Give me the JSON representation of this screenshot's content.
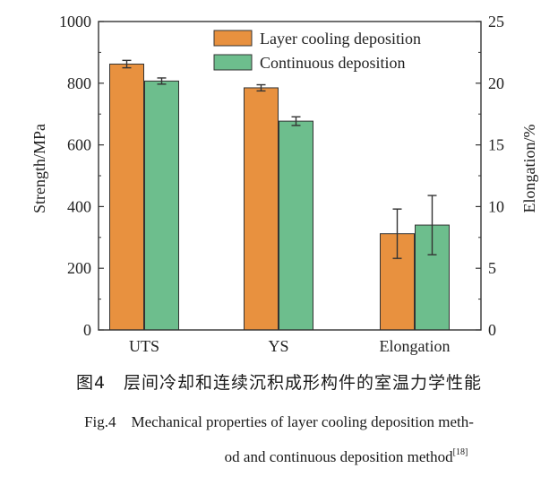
{
  "chart_data": {
    "type": "bar",
    "categories": [
      "UTS",
      "YS",
      "Elongation"
    ],
    "series": [
      {
        "name": "Layer cooling deposition",
        "color": "#E8913F",
        "values": [
          862,
          785,
          7.8
        ],
        "errors": [
          12,
          10,
          2.0
        ]
      },
      {
        "name": "Continuous deposition",
        "color": "#6DBE8D",
        "values": [
          807,
          677,
          8.5
        ],
        "errors": [
          10,
          14,
          2.4
        ]
      }
    ],
    "ylabel": "Strength/MPa",
    "y2label": "Elongation/%",
    "ylim": [
      0,
      1000
    ],
    "y2lim": [
      0,
      25
    ],
    "yticks": [
      "0",
      "200",
      "400",
      "600",
      "800",
      "1000"
    ],
    "y2ticks": [
      "0",
      "5",
      "10",
      "15",
      "20",
      "25"
    ],
    "right_axis_categories": [
      "Elongation"
    ],
    "legend_position": "top-right",
    "grid": false
  },
  "caption": {
    "cn": "图4　层间冷却和连续沉积成形构件的室温力学性能",
    "en_line1": "Fig.4　Mechanical properties of layer cooling deposition meth-",
    "en_line2": "od and continuous deposition method",
    "ref": "[18]"
  }
}
